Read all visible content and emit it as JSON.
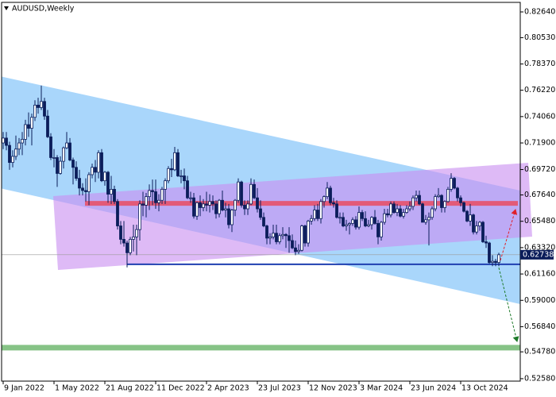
{
  "chart_data": {
    "type": "candlestick",
    "title": "AUDUSD,Weekly",
    "color": "#0b1d5a",
    "xlim": [
      -0.5,
      162.75
    ],
    "xticks": [
      {
        "value": 0,
        "label": "9 Jan 2022"
      },
      {
        "value": 16,
        "label": "1 May 2022"
      },
      {
        "value": 32,
        "label": "21 Aug 2022"
      },
      {
        "value": 48,
        "label": "11 Dec 2022"
      },
      {
        "value": 64,
        "label": "2 Apr 2023"
      },
      {
        "value": 80,
        "label": "23 Jul 2023"
      },
      {
        "value": 96,
        "label": "12 Nov 2023"
      },
      {
        "value": 112,
        "label": "3 Mar 2024"
      },
      {
        "value": 128,
        "label": "23 Jun 2024"
      },
      {
        "value": 144,
        "label": "13 Oct 2024"
      }
    ],
    "ylim": [
      0.5238,
      0.8342
    ],
    "yticks": [
      {
        "value": 0.8264,
        "label": "0.82640"
      },
      {
        "value": 0.8053,
        "label": "0.80530"
      },
      {
        "value": 0.7837,
        "label": "0.78370"
      },
      {
        "value": 0.7622,
        "label": "0.76220"
      },
      {
        "value": 0.7406,
        "label": "0.74060"
      },
      {
        "value": 0.719,
        "label": "0.71900"
      },
      {
        "value": 0.6972,
        "label": "0.69720"
      },
      {
        "value": 0.6764,
        "label": "0.67640"
      },
      {
        "value": 0.6548,
        "label": "0.65480"
      },
      {
        "value": 0.6332,
        "label": "0.63320"
      },
      {
        "value": 0.6116,
        "label": "0.61160"
      },
      {
        "value": 0.59,
        "label": "0.59000"
      },
      {
        "value": 0.5684,
        "label": "0.56840"
      },
      {
        "value": 0.5478,
        "label": "0.54780"
      },
      {
        "value": 0.5258,
        "label": "0.52580"
      }
    ],
    "last_price": {
      "value": 0.62738,
      "label": "0.62738"
    },
    "levels": [
      {
        "value": 0.5512,
        "color": "#86c386"
      },
      {
        "value": 0.6695,
        "color": "#e35a78"
      },
      {
        "value": 0.6195,
        "color": "#1f3fb0"
      }
    ],
    "open": [
      0.719,
      0.723,
      0.717,
      0.703,
      0.708,
      0.714,
      0.719,
      0.722,
      0.734,
      0.731,
      0.74,
      0.75,
      0.748,
      0.753,
      0.741,
      0.724,
      0.707,
      0.707,
      0.694,
      0.704,
      0.715,
      0.719,
      0.705,
      0.699,
      0.69,
      0.682,
      0.68,
      0.679,
      0.693,
      0.699,
      0.695,
      0.711,
      0.688,
      0.695,
      0.677,
      0.681,
      0.671,
      0.651,
      0.64,
      0.637,
      0.629,
      0.64,
      0.642,
      0.648,
      0.669,
      0.668,
      0.675,
      0.68,
      0.679,
      0.67,
      0.672,
      0.681,
      0.688,
      0.698,
      0.697,
      0.711,
      0.692,
      0.692,
      0.688,
      0.674,
      0.674,
      0.659,
      0.67,
      0.666,
      0.669,
      0.668,
      0.671,
      0.669,
      0.661,
      0.672,
      0.664,
      0.665,
      0.652,
      0.664,
      0.672,
      0.687,
      0.668,
      0.665,
      0.669,
      0.685,
      0.674,
      0.665,
      0.658,
      0.651,
      0.641,
      0.642,
      0.645,
      0.638,
      0.643,
      0.644,
      0.643,
      0.639,
      0.633,
      0.63,
      0.631,
      0.651,
      0.637,
      0.655,
      0.657,
      0.664,
      0.657,
      0.671,
      0.675,
      0.682,
      0.67,
      0.669,
      0.658,
      0.658,
      0.651,
      0.652,
      0.653,
      0.656,
      0.65,
      0.662,
      0.657,
      0.651,
      0.652,
      0.658,
      0.653,
      0.642,
      0.654,
      0.661,
      0.66,
      0.669,
      0.662,
      0.665,
      0.659,
      0.662,
      0.665,
      0.667,
      0.674,
      0.676,
      0.669,
      0.654,
      0.656,
      0.658,
      0.665,
      0.675,
      0.676,
      0.666,
      0.671,
      0.681,
      0.69,
      0.682,
      0.674,
      0.67,
      0.663,
      0.655,
      0.66,
      0.646,
      0.651,
      0.654,
      0.638,
      0.637,
      0.621,
      0.622,
      0.621
    ],
    "high": [
      0.728,
      0.728,
      0.72,
      0.713,
      0.725,
      0.723,
      0.728,
      0.738,
      0.744,
      0.743,
      0.754,
      0.756,
      0.766,
      0.756,
      0.746,
      0.727,
      0.714,
      0.709,
      0.708,
      0.716,
      0.728,
      0.723,
      0.707,
      0.704,
      0.697,
      0.686,
      0.69,
      0.695,
      0.702,
      0.705,
      0.713,
      0.714,
      0.696,
      0.696,
      0.692,
      0.684,
      0.673,
      0.655,
      0.655,
      0.639,
      0.642,
      0.652,
      0.652,
      0.672,
      0.679,
      0.678,
      0.685,
      0.689,
      0.689,
      0.677,
      0.683,
      0.69,
      0.7,
      0.706,
      0.7158,
      0.714,
      0.697,
      0.698,
      0.692,
      0.679,
      0.678,
      0.671,
      0.676,
      0.673,
      0.679,
      0.677,
      0.676,
      0.672,
      0.673,
      0.68,
      0.67,
      0.669,
      0.665,
      0.673,
      0.69,
      0.688,
      0.672,
      0.672,
      0.69,
      0.689,
      0.682,
      0.672,
      0.662,
      0.652,
      0.645,
      0.652,
      0.652,
      0.645,
      0.65,
      0.645,
      0.65,
      0.644,
      0.639,
      0.636,
      0.652,
      0.652,
      0.656,
      0.66,
      0.668,
      0.669,
      0.673,
      0.676,
      0.687,
      0.684,
      0.674,
      0.672,
      0.662,
      0.662,
      0.656,
      0.654,
      0.658,
      0.659,
      0.667,
      0.664,
      0.663,
      0.656,
      0.659,
      0.664,
      0.656,
      0.655,
      0.665,
      0.665,
      0.671,
      0.671,
      0.669,
      0.668,
      0.665,
      0.668,
      0.671,
      0.676,
      0.68,
      0.68,
      0.67,
      0.66,
      0.662,
      0.667,
      0.677,
      0.682,
      0.677,
      0.672,
      0.683,
      0.6942,
      0.691,
      0.683,
      0.676,
      0.671,
      0.664,
      0.669,
      0.661,
      0.655,
      0.655,
      0.655,
      0.643,
      0.638,
      0.627,
      0.624,
      0.629
    ],
    "low": [
      0.714,
      0.713,
      0.697,
      0.699,
      0.705,
      0.709,
      0.709,
      0.717,
      0.724,
      0.717,
      0.737,
      0.743,
      0.746,
      0.738,
      0.723,
      0.705,
      0.699,
      0.683,
      0.693,
      0.698,
      0.714,
      0.704,
      0.685,
      0.688,
      0.676,
      0.676,
      0.671,
      0.668,
      0.69,
      0.687,
      0.69,
      0.687,
      0.684,
      0.67,
      0.669,
      0.669,
      0.648,
      0.636,
      0.634,
      0.617,
      0.627,
      0.63,
      0.627,
      0.639,
      0.659,
      0.658,
      0.664,
      0.668,
      0.665,
      0.663,
      0.669,
      0.669,
      0.686,
      0.691,
      0.696,
      0.691,
      0.686,
      0.681,
      0.673,
      0.67,
      0.657,
      0.656,
      0.659,
      0.663,
      0.663,
      0.662,
      0.664,
      0.657,
      0.658,
      0.663,
      0.658,
      0.649,
      0.646,
      0.659,
      0.67,
      0.666,
      0.66,
      0.66,
      0.668,
      0.673,
      0.662,
      0.656,
      0.65,
      0.636,
      0.636,
      0.64,
      0.636,
      0.636,
      0.64,
      0.633,
      0.629,
      0.632,
      0.627,
      0.628,
      0.63,
      0.634,
      0.634,
      0.652,
      0.655,
      0.655,
      0.653,
      0.666,
      0.673,
      0.668,
      0.666,
      0.657,
      0.653,
      0.65,
      0.647,
      0.644,
      0.651,
      0.648,
      0.648,
      0.655,
      0.65,
      0.65,
      0.648,
      0.652,
      0.636,
      0.639,
      0.652,
      0.658,
      0.658,
      0.661,
      0.659,
      0.658,
      0.657,
      0.661,
      0.663,
      0.664,
      0.671,
      0.668,
      0.654,
      0.652,
      0.635,
      0.656,
      0.663,
      0.674,
      0.662,
      0.662,
      0.67,
      0.679,
      0.681,
      0.671,
      0.667,
      0.662,
      0.654,
      0.651,
      0.644,
      0.644,
      0.647,
      0.637,
      0.633,
      0.62,
      0.618,
      0.618,
      0.618
    ],
    "close": [
      0.723,
      0.717,
      0.703,
      0.708,
      0.714,
      0.719,
      0.722,
      0.734,
      0.731,
      0.74,
      0.75,
      0.748,
      0.753,
      0.741,
      0.724,
      0.707,
      0.707,
      0.694,
      0.704,
      0.715,
      0.719,
      0.705,
      0.699,
      0.69,
      0.682,
      0.68,
      0.679,
      0.693,
      0.699,
      0.695,
      0.711,
      0.688,
      0.695,
      0.677,
      0.681,
      0.671,
      0.651,
      0.64,
      0.637,
      0.629,
      0.64,
      0.642,
      0.648,
      0.669,
      0.668,
      0.675,
      0.68,
      0.679,
      0.67,
      0.672,
      0.681,
      0.688,
      0.698,
      0.697,
      0.711,
      0.692,
      0.692,
      0.688,
      0.674,
      0.674,
      0.659,
      0.67,
      0.666,
      0.669,
      0.668,
      0.671,
      0.669,
      0.661,
      0.672,
      0.664,
      0.665,
      0.652,
      0.664,
      0.672,
      0.687,
      0.668,
      0.665,
      0.669,
      0.685,
      0.674,
      0.665,
      0.658,
      0.651,
      0.641,
      0.642,
      0.645,
      0.638,
      0.643,
      0.644,
      0.643,
      0.639,
      0.633,
      0.63,
      0.631,
      0.651,
      0.637,
      0.655,
      0.657,
      0.664,
      0.657,
      0.671,
      0.675,
      0.682,
      0.67,
      0.669,
      0.658,
      0.658,
      0.651,
      0.652,
      0.653,
      0.656,
      0.65,
      0.662,
      0.657,
      0.651,
      0.652,
      0.658,
      0.653,
      0.642,
      0.654,
      0.661,
      0.66,
      0.669,
      0.662,
      0.665,
      0.659,
      0.662,
      0.665,
      0.667,
      0.674,
      0.676,
      0.669,
      0.654,
      0.656,
      0.658,
      0.665,
      0.675,
      0.676,
      0.666,
      0.671,
      0.681,
      0.69,
      0.682,
      0.674,
      0.67,
      0.663,
      0.655,
      0.66,
      0.646,
      0.651,
      0.654,
      0.638,
      0.637,
      0.621,
      0.622,
      0.621,
      0.62738
    ]
  }
}
